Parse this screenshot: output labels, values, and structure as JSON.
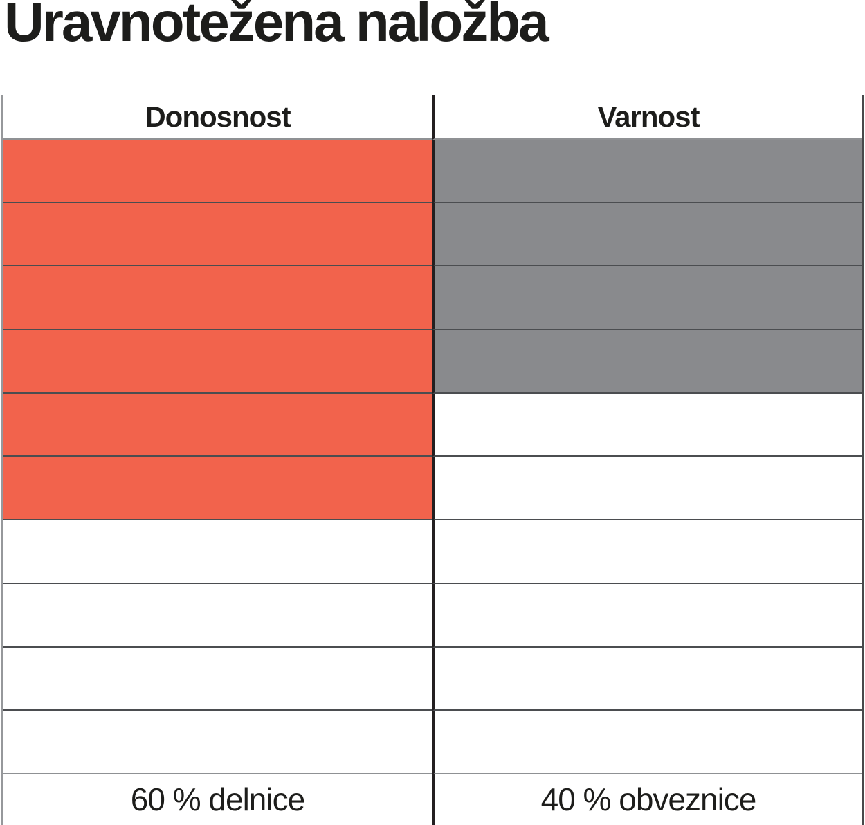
{
  "title": "Uravnotežena naložba",
  "chart_data": {
    "type": "table",
    "title": "Uravnotežena naložba",
    "categories": [
      "Donosnost",
      "Varnost"
    ],
    "rows_total": 10,
    "series": [
      {
        "name": "filled_cells_of_10",
        "values": [
          6,
          4
        ]
      }
    ],
    "percentages": [
      60,
      40
    ],
    "value_labels": [
      "60 % delnice",
      "40 % obveznice"
    ],
    "legend_position": "bottom-row",
    "grid": "on",
    "colors": {
      "donosnost_fill": "#F2634C",
      "varnost_fill": "#898A8D",
      "empty_fill": "#FFFFFF",
      "line_dark": "#4B4D50",
      "line_gray": "#8F9194",
      "divider_black": "#231F20",
      "text": "#1D1D1B"
    }
  }
}
